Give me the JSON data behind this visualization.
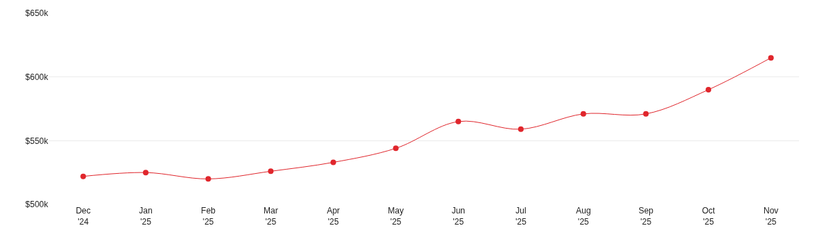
{
  "chart_data": {
    "type": "line",
    "categories": [
      "Dec\n'24",
      "Jan\n'25",
      "Feb\n'25",
      "Mar\n'25",
      "Apr\n'25",
      "May\n'25",
      "Jun\n'25",
      "Jul\n'25",
      "Aug\n'25",
      "Sep\n'25",
      "Oct\n'25",
      "Nov\n'25"
    ],
    "series": [
      {
        "color": "#e0262c",
        "values": [
          522000,
          525000,
          520000,
          526000,
          533000,
          544000,
          565000,
          559000,
          571000,
          571000,
          590000,
          615000
        ]
      }
    ],
    "ylim": [
      500000,
      650000
    ],
    "yticks": [
      {
        "value": 500000,
        "label": "$500k"
      },
      {
        "value": 550000,
        "label": "$550k"
      },
      {
        "value": 600000,
        "label": "$600k"
      },
      {
        "value": 650000,
        "label": "$650k"
      }
    ],
    "grid": "y",
    "marker": "circle",
    "line_style": "solid"
  }
}
